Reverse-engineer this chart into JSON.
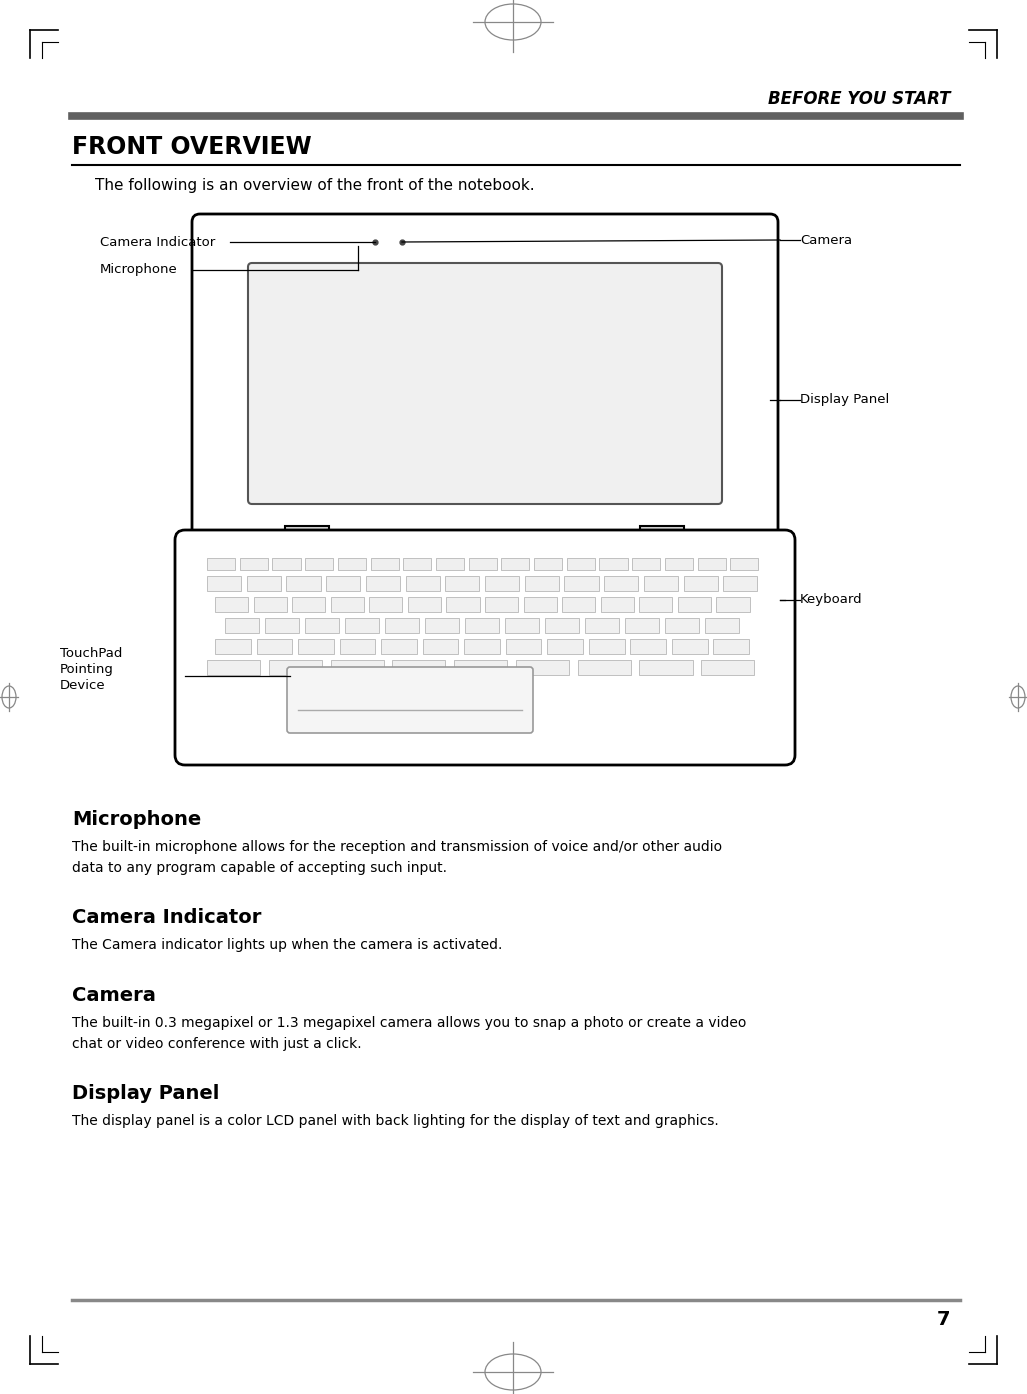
{
  "page_bg": "#ffffff",
  "header_text": "BEFORE YOU START",
  "header_line_color": "#666666",
  "section_title": "FRONT OVERVIEW",
  "intro_text": "The following is an overview of the front of the notebook.",
  "footer_line_color": "#888888",
  "page_number": "7",
  "sections": [
    {
      "title": "Microphone",
      "body": "The built-in microphone allows for the reception and transmission of voice and/or other audio\ndata to any program capable of accepting such input."
    },
    {
      "title": "Camera Indicator",
      "body": "The Camera indicator lights up when the camera is activated."
    },
    {
      "title": "Camera",
      "body": "The built-in 0.3 megapixel or 1.3 megapixel camera allows you to snap a photo or create a video\nchat or video conference with just a click."
    },
    {
      "title": "Display Panel",
      "body": "The display panel is a color LCD panel with back lighting for the display of text and graphics."
    }
  ]
}
